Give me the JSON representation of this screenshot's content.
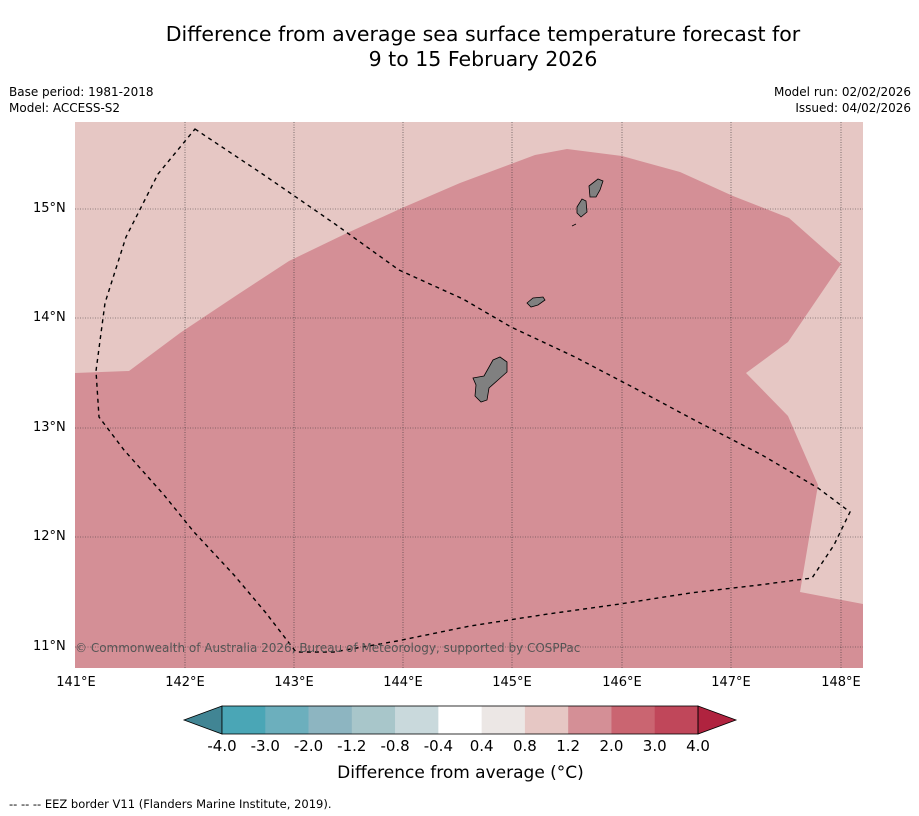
{
  "header": {
    "title_line1": "Difference from average sea surface temperature forecast for",
    "title_line2": "9 to 15 February 2026",
    "base_period": "Base period: 1981-2018",
    "model": "Model: ACCESS-S2",
    "model_run": "Model run: 02/02/2026",
    "issued": "Issued: 04/02/2026"
  },
  "map": {
    "lat_ticks": [
      "15°N",
      "14°N",
      "13°N",
      "12°N",
      "11°N"
    ],
    "lon_ticks": [
      "141°E",
      "142°E",
      "143°E",
      "144°E",
      "145°E",
      "146°E",
      "147°E",
      "148°E"
    ],
    "copyright": "© Commonwealth of Australia 2026, Bureau of Meteorology, supported by COSPPac",
    "colors": {
      "band_0_8_to_1_2": "#e6c7c4",
      "band_1_2_to_2_0": "#d48f96",
      "land": "#808080"
    }
  },
  "colorbar": {
    "labels": [
      "-4.0",
      "-3.0",
      "-2.0",
      "-1.2",
      "-0.8",
      "-0.4",
      "0.4",
      "0.8",
      "1.2",
      "2.0",
      "3.0",
      "4.0"
    ],
    "colors": [
      "#418594",
      "#4aa6b6",
      "#6cafbd",
      "#8db5c1",
      "#a8c6ca",
      "#c9d9dc",
      "#ffffff",
      "#ece7e5",
      "#e6c7c4",
      "#d48f96",
      "#ca6571",
      "#c0475a",
      "#b0233f"
    ],
    "title": "Difference from average ($^\\circ$C)",
    "title_display": "Difference from average (°C)"
  },
  "footer": {
    "legend": "--  --  -- EEZ border V11 (Flanders Marine Institute, 2019)."
  }
}
